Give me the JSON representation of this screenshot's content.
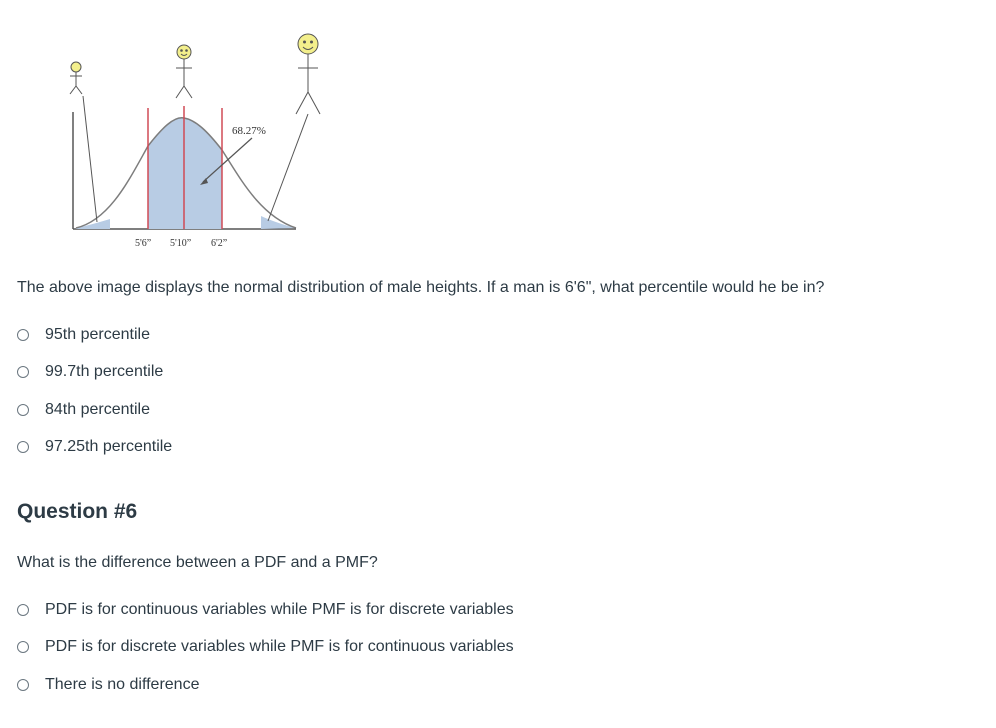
{
  "figure": {
    "bell_label": "68.27%",
    "tick_labels": [
      "5'6”",
      "5'10”",
      "6'2”"
    ],
    "curve_color": "#7d7d7d",
    "fill_color": "#b8cce4",
    "marker_color": "#d04a55",
    "face_color": "#f3ef8c"
  },
  "question5": {
    "text": "The above image displays the normal distribution of male heights. If a man is 6'6\", what percentile would he be in?",
    "options": [
      "95th percentile",
      "99.7th percentile",
      "84th percentile",
      "97.25th percentile"
    ]
  },
  "question6": {
    "heading": "Question #6",
    "text": "What is the difference between a PDF and a PMF?",
    "options": [
      "PDF is for continuous variables while PMF is for discrete variables",
      "PDF is for discrete variables while PMF is for continuous variables",
      "There is no difference"
    ]
  }
}
